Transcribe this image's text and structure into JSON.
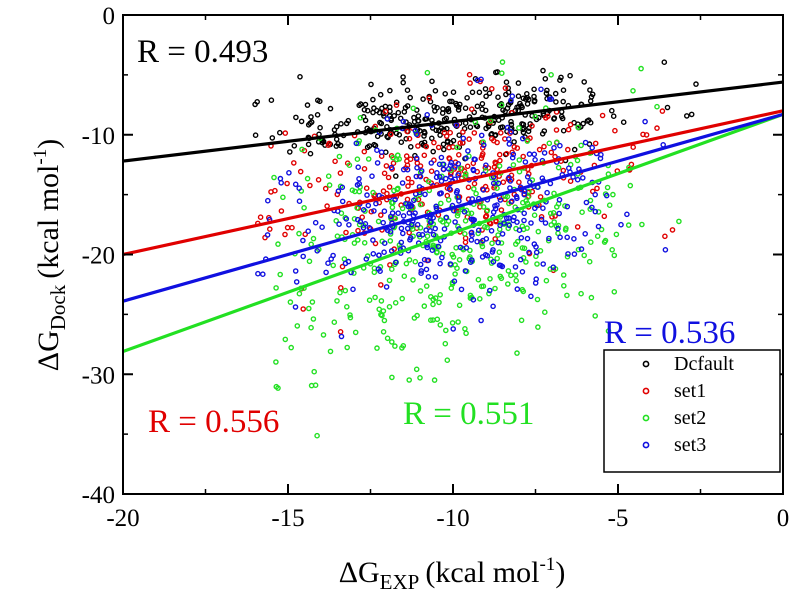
{
  "chart_data": {
    "type": "scatter",
    "xlabel": "ΔG",
    "xlabel_sub": "EXP",
    "xlabel_unit": "(kcal mol",
    "xlabel_sup": "-1",
    "xlabel_close": ")",
    "ylabel": "ΔG",
    "ylabel_sub": "Dock",
    "ylabel_unit": "(kcal mol",
    "ylabel_sup": "-1",
    "ylabel_close": ")",
    "xlim": [
      -20,
      0
    ],
    "ylim": [
      -40,
      0
    ],
    "xticks": [
      -20,
      -15,
      -10,
      -5,
      0
    ],
    "yticks": [
      0,
      -10,
      -20,
      -30,
      -40
    ],
    "xtick_labels": [
      "-20",
      "-15",
      "-10",
      "-5",
      "0"
    ],
    "ytick_labels": [
      "0",
      "-10",
      "-20",
      "-30",
      "-40"
    ],
    "grid": false,
    "legend_position": "bottom-right",
    "series": [
      {
        "name": "Dcfault",
        "color": "#000000",
        "r_label": "R = 0.493",
        "fit": {
          "slope": 0.33,
          "intercept": -5.6
        },
        "cloud": {
          "x_min": -16.4,
          "x_max": -2.5,
          "mean_y_at_-10": -8.6,
          "spread_y": 1.5,
          "count": 330,
          "seed": 11
        }
      },
      {
        "name": "set1",
        "color": "#e00000",
        "r_label": "R = 0.556",
        "fit": {
          "slope": 0.6,
          "intercept": -8.0
        },
        "cloud": {
          "x_min": -16.0,
          "x_max": -3.0,
          "mean_y_at_-10": -13.6,
          "spread_y": 3.2,
          "count": 280,
          "seed": 23
        }
      },
      {
        "name": "set2",
        "color": "#22e022",
        "r_label": "R = 0.551",
        "fit": {
          "slope": 0.99,
          "intercept": -8.3
        },
        "cloud": {
          "x_min": -15.5,
          "x_max": -3.0,
          "mean_y_at_-10": -18.8,
          "spread_y": 5.2,
          "count": 420,
          "seed": 37
        }
      },
      {
        "name": "set3",
        "color": "#1010e0",
        "r_label": "R = 0.536",
        "fit": {
          "slope": 0.78,
          "intercept": -8.3
        },
        "cloud": {
          "x_min": -16.0,
          "x_max": -3.0,
          "mean_y_at_-10": -16.2,
          "spread_y": 3.8,
          "count": 380,
          "seed": 53
        }
      }
    ]
  }
}
